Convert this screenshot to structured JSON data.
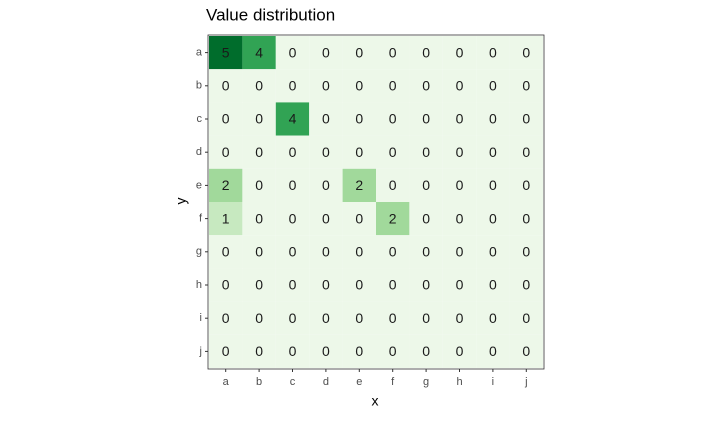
{
  "chart_data": {
    "type": "heatmap",
    "title": "Value distribution",
    "xlabel": "x",
    "ylabel": "y",
    "x_categories": [
      "a",
      "b",
      "c",
      "d",
      "e",
      "f",
      "g",
      "h",
      "i",
      "j"
    ],
    "y_categories": [
      "a",
      "b",
      "c",
      "d",
      "e",
      "f",
      "g",
      "h",
      "i",
      "j"
    ],
    "values": [
      [
        5,
        4,
        0,
        0,
        0,
        0,
        0,
        0,
        0,
        0
      ],
      [
        0,
        0,
        0,
        0,
        0,
        0,
        0,
        0,
        0,
        0
      ],
      [
        0,
        0,
        4,
        0,
        0,
        0,
        0,
        0,
        0,
        0
      ],
      [
        0,
        0,
        0,
        0,
        0,
        0,
        0,
        0,
        0,
        0
      ],
      [
        2,
        0,
        0,
        0,
        2,
        0,
        0,
        0,
        0,
        0
      ],
      [
        1,
        0,
        0,
        0,
        0,
        2,
        0,
        0,
        0,
        0
      ],
      [
        0,
        0,
        0,
        0,
        0,
        0,
        0,
        0,
        0,
        0
      ],
      [
        0,
        0,
        0,
        0,
        0,
        0,
        0,
        0,
        0,
        0
      ],
      [
        0,
        0,
        0,
        0,
        0,
        0,
        0,
        0,
        0,
        0
      ],
      [
        0,
        0,
        0,
        0,
        0,
        0,
        0,
        0,
        0,
        0
      ]
    ],
    "palette": [
      "#edf8e9",
      "#c7e9c0",
      "#a1d99b",
      "#74c476",
      "#31a354",
      "#006d2c"
    ]
  }
}
